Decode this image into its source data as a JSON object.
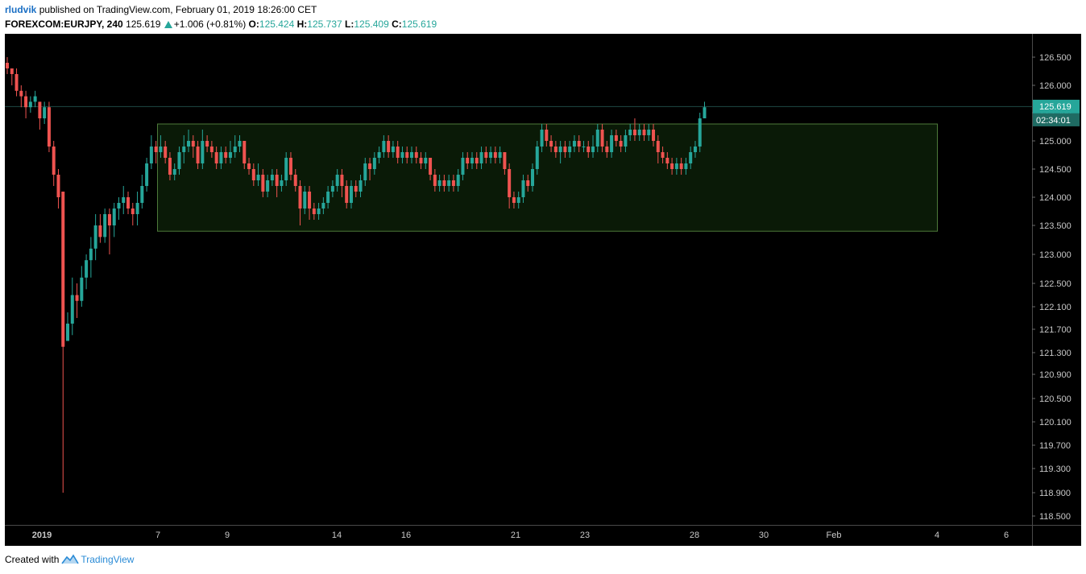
{
  "header": {
    "author": "rludvik",
    "published_text": "published on TradingView.com, February 01, 2019 18:26:00 CET",
    "symbol": "FOREXCOM:EURJPY, 240",
    "last": "125.619",
    "change": "+1.006 (+0.81%)",
    "o_label": "O:",
    "o": "125.424",
    "h_label": "H:",
    "h": "125.737",
    "l_label": "L:",
    "l": "125.409",
    "c_label": "C:",
    "c": "125.619"
  },
  "footer": {
    "created_with": "Created with",
    "brand": "TradingView"
  },
  "colors": {
    "up": "#26a69a",
    "down": "#ef5350",
    "background": "#000000",
    "box_fill": "#0a1a07",
    "box_stroke": "#4e7a3a"
  },
  "chart_data": {
    "type": "candlestick",
    "price_axis_labels": [
      "126.500",
      "126.000",
      "125.500",
      "125.000",
      "124.500",
      "124.000",
      "123.500",
      "123.000",
      "122.500",
      "122.100",
      "121.700",
      "121.300",
      "120.900",
      "120.500",
      "120.100",
      "119.700",
      "119.300",
      "118.900",
      "118.500"
    ],
    "time_axis_labels": [
      "2019",
      "7",
      "9",
      "14",
      "16",
      "21",
      "23",
      "28",
      "30",
      "Feb",
      "4",
      "6"
    ],
    "last_price": "125.619",
    "countdown": "02:34:01",
    "range_box": {
      "top": 125.3,
      "bottom": 123.4
    },
    "candles": [
      [
        126.4,
        126.3,
        126.5,
        126.2
      ],
      [
        126.3,
        126.2,
        126.3,
        126.0
      ],
      [
        126.2,
        125.9,
        126.3,
        125.8
      ],
      [
        125.9,
        125.8,
        126.0,
        125.6
      ],
      [
        125.8,
        125.6,
        125.9,
        125.4
      ],
      [
        125.6,
        125.7,
        125.8,
        125.5
      ],
      [
        125.7,
        125.8,
        125.9,
        125.6
      ],
      [
        125.7,
        125.4,
        125.7,
        125.2
      ],
      [
        125.4,
        125.6,
        125.7,
        125.3
      ],
      [
        125.6,
        124.9,
        125.7,
        124.8
      ],
      [
        124.9,
        124.4,
        125.0,
        124.2
      ],
      [
        124.4,
        124.0,
        124.5,
        123.8
      ],
      [
        124.1,
        121.4,
        124.1,
        118.9
      ],
      [
        121.5,
        121.8,
        122.0,
        121.5
      ],
      [
        121.8,
        122.3,
        122.6,
        121.6
      ],
      [
        122.3,
        122.2,
        122.5,
        121.9
      ],
      [
        122.2,
        122.6,
        122.8,
        122.1
      ],
      [
        122.6,
        122.9,
        123.0,
        122.4
      ],
      [
        122.9,
        123.1,
        123.3,
        122.6
      ],
      [
        123.1,
        123.5,
        123.7,
        122.9
      ],
      [
        123.5,
        123.3,
        123.7,
        123.2
      ],
      [
        123.3,
        123.7,
        123.8,
        123.2
      ],
      [
        123.7,
        123.5,
        123.8,
        123.0
      ],
      [
        123.5,
        123.8,
        123.9,
        123.3
      ],
      [
        123.8,
        123.9,
        124.0,
        123.6
      ],
      [
        123.9,
        124.0,
        124.2,
        123.7
      ],
      [
        124.0,
        123.8,
        124.1,
        123.7
      ],
      [
        123.8,
        123.7,
        123.9,
        123.5
      ],
      [
        123.7,
        123.9,
        124.1,
        123.5
      ],
      [
        123.9,
        124.2,
        124.4,
        123.8
      ],
      [
        124.2,
        124.6,
        124.7,
        124.1
      ],
      [
        124.6,
        124.9,
        125.1,
        124.5
      ],
      [
        124.9,
        124.8,
        125.0,
        124.6
      ],
      [
        124.8,
        124.9,
        125.1,
        124.7
      ],
      [
        124.9,
        124.7,
        125.0,
        124.6
      ],
      [
        124.7,
        124.4,
        124.8,
        124.3
      ],
      [
        124.4,
        124.5,
        124.6,
        124.3
      ],
      [
        124.5,
        124.8,
        124.9,
        124.4
      ],
      [
        124.8,
        124.9,
        125.1,
        124.6
      ],
      [
        124.9,
        125.0,
        125.2,
        124.8
      ],
      [
        125.0,
        124.9,
        125.1,
        124.7
      ],
      [
        124.9,
        124.6,
        125.0,
        124.5
      ],
      [
        124.6,
        125.0,
        125.2,
        124.5
      ],
      [
        125.0,
        124.9,
        125.1,
        124.8
      ],
      [
        124.9,
        124.8,
        125.0,
        124.7
      ],
      [
        124.8,
        124.6,
        124.9,
        124.5
      ],
      [
        124.6,
        124.8,
        124.9,
        124.5
      ],
      [
        124.8,
        124.7,
        124.9,
        124.6
      ],
      [
        124.7,
        124.8,
        125.0,
        124.6
      ],
      [
        124.8,
        124.9,
        125.1,
        124.7
      ],
      [
        124.9,
        125.0,
        125.1,
        124.8
      ],
      [
        125.0,
        124.6,
        125.0,
        124.5
      ],
      [
        124.6,
        124.5,
        124.7,
        124.4
      ],
      [
        124.5,
        124.3,
        124.6,
        124.2
      ],
      [
        124.3,
        124.4,
        124.6,
        124.2
      ],
      [
        124.4,
        124.1,
        124.5,
        124.0
      ],
      [
        124.1,
        124.3,
        124.4,
        124.0
      ],
      [
        124.3,
        124.4,
        124.5,
        124.2
      ],
      [
        124.4,
        124.2,
        124.5,
        124.0
      ],
      [
        124.2,
        124.3,
        124.4,
        124.1
      ],
      [
        124.3,
        124.7,
        124.8,
        124.2
      ],
      [
        124.7,
        124.4,
        124.8,
        124.3
      ],
      [
        124.4,
        124.2,
        124.5,
        124.1
      ],
      [
        124.2,
        123.8,
        124.3,
        123.5
      ],
      [
        123.8,
        124.1,
        124.2,
        123.7
      ],
      [
        124.1,
        123.8,
        124.2,
        123.6
      ],
      [
        123.8,
        123.7,
        123.9,
        123.6
      ],
      [
        123.7,
        123.8,
        123.9,
        123.6
      ],
      [
        123.8,
        123.9,
        124.0,
        123.7
      ],
      [
        123.9,
        124.1,
        124.2,
        123.8
      ],
      [
        124.1,
        124.2,
        124.3,
        124.0
      ],
      [
        124.2,
        124.4,
        124.5,
        124.1
      ],
      [
        124.4,
        124.2,
        124.5,
        124.0
      ],
      [
        124.2,
        123.9,
        124.3,
        123.8
      ],
      [
        123.9,
        124.2,
        124.3,
        123.8
      ],
      [
        124.2,
        124.1,
        124.3,
        124.0
      ],
      [
        124.1,
        124.3,
        124.4,
        124.0
      ],
      [
        124.3,
        124.6,
        124.7,
        124.2
      ],
      [
        124.6,
        124.5,
        124.7,
        124.3
      ],
      [
        124.5,
        124.7,
        124.8,
        124.4
      ],
      [
        124.7,
        124.8,
        124.9,
        124.6
      ],
      [
        124.8,
        125.0,
        125.1,
        124.7
      ],
      [
        125.0,
        124.8,
        125.1,
        124.7
      ],
      [
        124.8,
        124.9,
        125.0,
        124.7
      ],
      [
        124.9,
        124.7,
        125.0,
        124.6
      ],
      [
        124.7,
        124.8,
        124.9,
        124.6
      ],
      [
        124.8,
        124.7,
        124.9,
        124.6
      ],
      [
        124.7,
        124.8,
        124.9,
        124.6
      ],
      [
        124.8,
        124.7,
        124.9,
        124.6
      ],
      [
        124.7,
        124.6,
        124.8,
        124.5
      ],
      [
        124.6,
        124.7,
        124.8,
        124.5
      ],
      [
        124.7,
        124.4,
        124.7,
        124.3
      ],
      [
        124.4,
        124.2,
        124.5,
        124.1
      ],
      [
        124.2,
        124.3,
        124.4,
        124.1
      ],
      [
        124.3,
        124.2,
        124.4,
        124.1
      ],
      [
        124.2,
        124.3,
        124.4,
        124.1
      ],
      [
        124.3,
        124.2,
        124.4,
        124.1
      ],
      [
        124.2,
        124.4,
        124.5,
        124.1
      ],
      [
        124.4,
        124.7,
        124.8,
        124.3
      ],
      [
        124.7,
        124.6,
        124.8,
        124.5
      ],
      [
        124.6,
        124.7,
        124.8,
        124.5
      ],
      [
        124.7,
        124.6,
        124.8,
        124.5
      ],
      [
        124.6,
        124.8,
        124.9,
        124.5
      ],
      [
        124.8,
        124.7,
        124.9,
        124.6
      ],
      [
        124.7,
        124.8,
        124.9,
        124.6
      ],
      [
        124.8,
        124.7,
        124.9,
        124.6
      ],
      [
        124.7,
        124.8,
        124.9,
        124.6
      ],
      [
        124.8,
        124.5,
        124.8,
        124.4
      ],
      [
        124.5,
        124.0,
        124.6,
        123.8
      ],
      [
        124.0,
        123.9,
        124.1,
        123.8
      ],
      [
        123.9,
        124.0,
        124.1,
        123.8
      ],
      [
        124.0,
        124.3,
        124.4,
        123.9
      ],
      [
        124.3,
        124.2,
        124.4,
        124.1
      ],
      [
        124.2,
        124.5,
        124.6,
        124.1
      ],
      [
        124.5,
        124.9,
        125.0,
        124.4
      ],
      [
        124.9,
        125.2,
        125.3,
        124.8
      ],
      [
        125.2,
        125.0,
        125.3,
        124.9
      ],
      [
        125.0,
        124.9,
        125.1,
        124.8
      ],
      [
        124.9,
        124.8,
        125.0,
        124.7
      ],
      [
        124.8,
        124.9,
        125.0,
        124.6
      ],
      [
        124.9,
        124.8,
        125.0,
        124.7
      ],
      [
        124.8,
        124.9,
        125.0,
        124.7
      ],
      [
        124.9,
        125.0,
        125.1,
        124.8
      ],
      [
        125.0,
        124.9,
        125.1,
        124.8
      ],
      [
        124.9,
        124.9,
        125.0,
        124.8
      ],
      [
        124.9,
        124.8,
        125.0,
        124.7
      ],
      [
        124.8,
        124.9,
        125.1,
        124.7
      ],
      [
        124.9,
        125.2,
        125.3,
        124.8
      ],
      [
        125.2,
        124.9,
        125.3,
        124.8
      ],
      [
        124.9,
        124.8,
        125.0,
        124.7
      ],
      [
        124.8,
        125.1,
        125.2,
        124.7
      ],
      [
        125.1,
        125.0,
        125.2,
        124.9
      ],
      [
        125.0,
        124.9,
        125.1,
        124.8
      ],
      [
        124.9,
        125.1,
        125.2,
        124.8
      ],
      [
        125.1,
        125.2,
        125.3,
        125.0
      ],
      [
        125.2,
        125.1,
        125.4,
        125.0
      ],
      [
        125.1,
        125.2,
        125.3,
        125.0
      ],
      [
        125.2,
        125.1,
        125.3,
        125.0
      ],
      [
        125.1,
        125.2,
        125.3,
        125.0
      ],
      [
        125.2,
        125.0,
        125.3,
        124.9
      ],
      [
        125.0,
        124.8,
        125.1,
        124.6
      ],
      [
        124.8,
        124.7,
        124.9,
        124.6
      ],
      [
        124.7,
        124.6,
        124.8,
        124.5
      ],
      [
        124.6,
        124.5,
        124.7,
        124.4
      ],
      [
        124.5,
        124.6,
        124.7,
        124.4
      ],
      [
        124.6,
        124.5,
        124.7,
        124.4
      ],
      [
        124.5,
        124.6,
        124.7,
        124.4
      ],
      [
        124.6,
        124.8,
        124.9,
        124.5
      ],
      [
        124.8,
        124.9,
        125.0,
        124.7
      ],
      [
        124.9,
        125.4,
        125.5,
        124.8
      ],
      [
        125.4,
        125.6,
        125.7,
        125.4
      ]
    ]
  }
}
